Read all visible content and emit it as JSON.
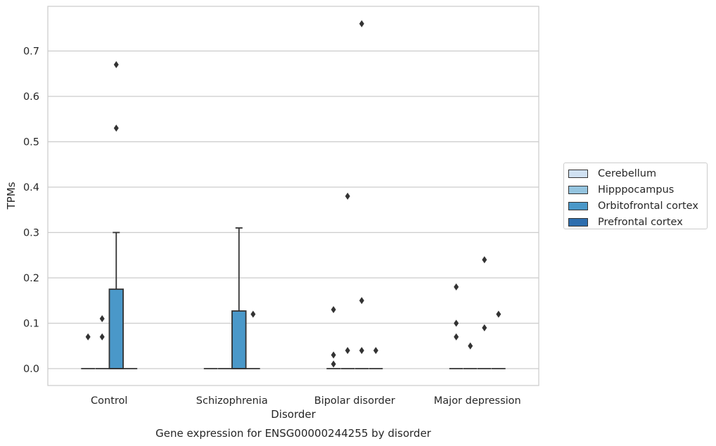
{
  "chart_data": {
    "type": "box",
    "title": "Gene expression for ENSG00000244255 by disorder",
    "xlabel": "Disorder",
    "ylabel": "TPMs",
    "categories": [
      "Control",
      "Schizophrenia",
      "Bipolar disorder",
      "Major depression"
    ],
    "ylim": [
      -0.037,
      0.8
    ],
    "yticks": [
      "0.0",
      "0.1",
      "0.2",
      "0.3",
      "0.4",
      "0.5",
      "0.6",
      "0.7"
    ],
    "grid": true,
    "legend_position": "right",
    "series": [
      {
        "name": "Cerebellum",
        "color": "#d0e1f2",
        "boxes": [
          {
            "q1": 0,
            "median": 0,
            "q3": 0,
            "whisker_low": 0,
            "whisker_high": 0,
            "outliers": [
              0.07
            ]
          },
          {
            "q1": 0,
            "median": 0,
            "q3": 0,
            "whisker_low": 0,
            "whisker_high": 0,
            "outliers": []
          },
          {
            "q1": 0,
            "median": 0,
            "q3": 0,
            "whisker_low": 0,
            "whisker_high": 0,
            "outliers": [
              0.13,
              0.03,
              0.01
            ]
          },
          {
            "q1": 0,
            "median": 0,
            "q3": 0,
            "whisker_low": 0,
            "whisker_high": 0,
            "outliers": [
              0.18,
              0.1,
              0.07
            ]
          }
        ]
      },
      {
        "name": "Hipppocampus",
        "color": "#94c4df",
        "boxes": [
          {
            "q1": 0,
            "median": 0,
            "q3": 0,
            "whisker_low": 0,
            "whisker_high": 0,
            "outliers": [
              0.11,
              0.07
            ]
          },
          {
            "q1": 0,
            "median": 0,
            "q3": 0,
            "whisker_low": 0,
            "whisker_high": 0,
            "outliers": []
          },
          {
            "q1": 0,
            "median": 0,
            "q3": 0,
            "whisker_low": 0,
            "whisker_high": 0,
            "outliers": [
              0.38,
              0.04
            ]
          },
          {
            "q1": 0,
            "median": 0,
            "q3": 0,
            "whisker_low": 0,
            "whisker_high": 0,
            "outliers": [
              0.05
            ]
          }
        ]
      },
      {
        "name": "Orbitofrontal cortex",
        "color": "#4a98c9",
        "boxes": [
          {
            "q1": 0,
            "median": 0,
            "q3": 0.175,
            "whisker_low": 0,
            "whisker_high": 0.3,
            "outliers": [
              0.67,
              0.53
            ]
          },
          {
            "q1": 0,
            "median": 0,
            "q3": 0.127,
            "whisker_low": 0,
            "whisker_high": 0.31,
            "outliers": []
          },
          {
            "q1": 0,
            "median": 0,
            "q3": 0,
            "whisker_low": 0,
            "whisker_high": 0,
            "outliers": [
              0.76,
              0.15,
              0.04
            ]
          },
          {
            "q1": 0,
            "median": 0,
            "q3": 0,
            "whisker_low": 0,
            "whisker_high": 0,
            "outliers": [
              0.24,
              0.09
            ]
          }
        ]
      },
      {
        "name": "Prefrontal cortex",
        "color": "#2e6eae",
        "boxes": [
          {
            "q1": 0,
            "median": 0,
            "q3": 0,
            "whisker_low": 0,
            "whisker_high": 0,
            "outliers": []
          },
          {
            "q1": 0,
            "median": 0,
            "q3": 0,
            "whisker_low": 0,
            "whisker_high": 0,
            "outliers": [
              0.12
            ]
          },
          {
            "q1": 0,
            "median": 0,
            "q3": 0,
            "whisker_low": 0,
            "whisker_high": 0,
            "outliers": [
              0.04
            ]
          },
          {
            "q1": 0,
            "median": 0,
            "q3": 0,
            "whisker_low": 0,
            "whisker_high": 0,
            "outliers": [
              0.12
            ]
          }
        ]
      }
    ]
  }
}
